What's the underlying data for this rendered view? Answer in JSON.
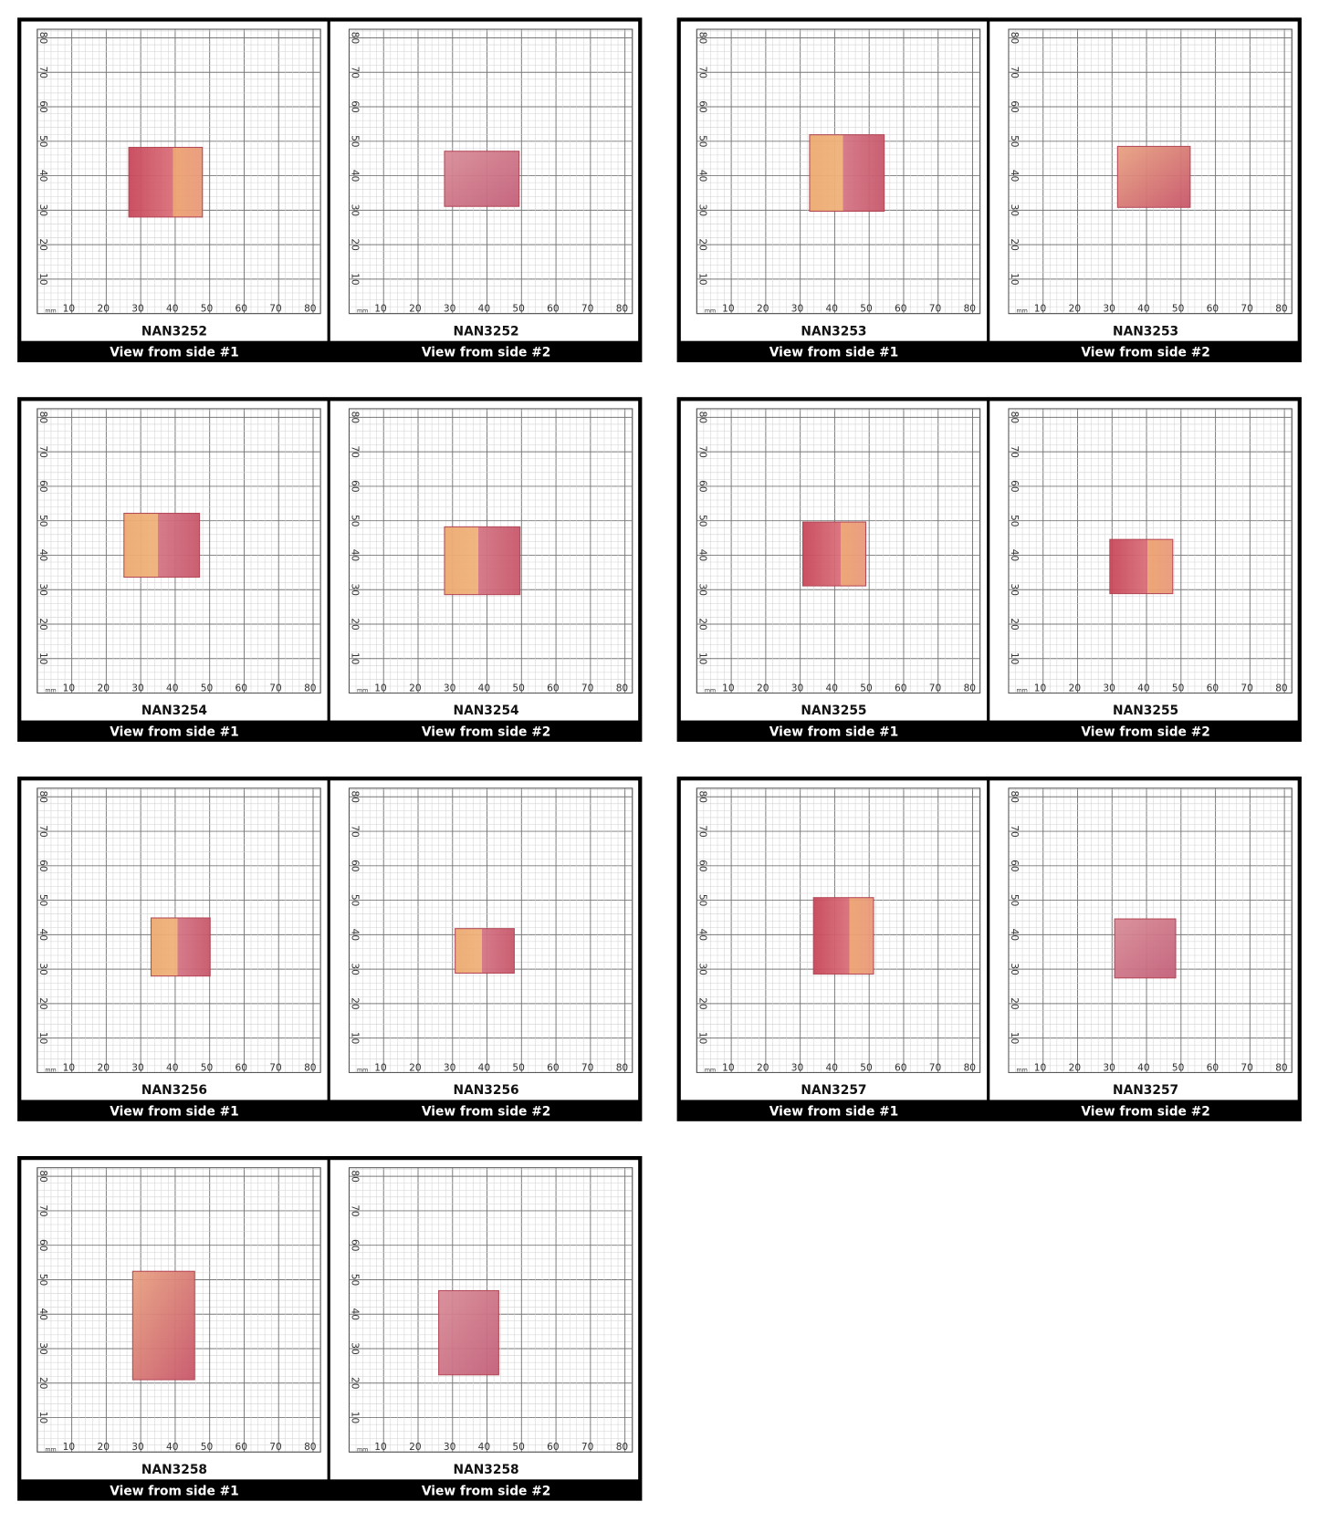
{
  "grid": {
    "unit": "mm",
    "x_labels": [
      10,
      20,
      30,
      40,
      50,
      60,
      70,
      80
    ],
    "y_labels": [
      80,
      70,
      60,
      50,
      40,
      30,
      20,
      10
    ]
  },
  "items": [
    {
      "code": "NAN3252",
      "views": [
        {
          "caption": "View from side #1"
        },
        {
          "caption": "View from side #2"
        }
      ]
    },
    {
      "code": "NAN3253",
      "views": [
        {
          "caption": "View from side #1"
        },
        {
          "caption": "View from side #2"
        }
      ]
    },
    {
      "code": "NAN3254",
      "views": [
        {
          "caption": "View from side #1"
        },
        {
          "caption": "View from side #2"
        }
      ]
    },
    {
      "code": "NAN3255",
      "views": [
        {
          "caption": "View from side #1"
        },
        {
          "caption": "View from side #2"
        }
      ]
    },
    {
      "code": "NAN3256",
      "views": [
        {
          "caption": "View from side #1"
        },
        {
          "caption": "View from side #2"
        }
      ]
    },
    {
      "code": "NAN3257",
      "views": [
        {
          "caption": "View from side #1"
        },
        {
          "caption": "View from side #2"
        }
      ]
    },
    {
      "code": "NAN3258",
      "views": [
        {
          "caption": "View from side #1"
        },
        {
          "caption": "View from side #2"
        }
      ]
    }
  ]
}
